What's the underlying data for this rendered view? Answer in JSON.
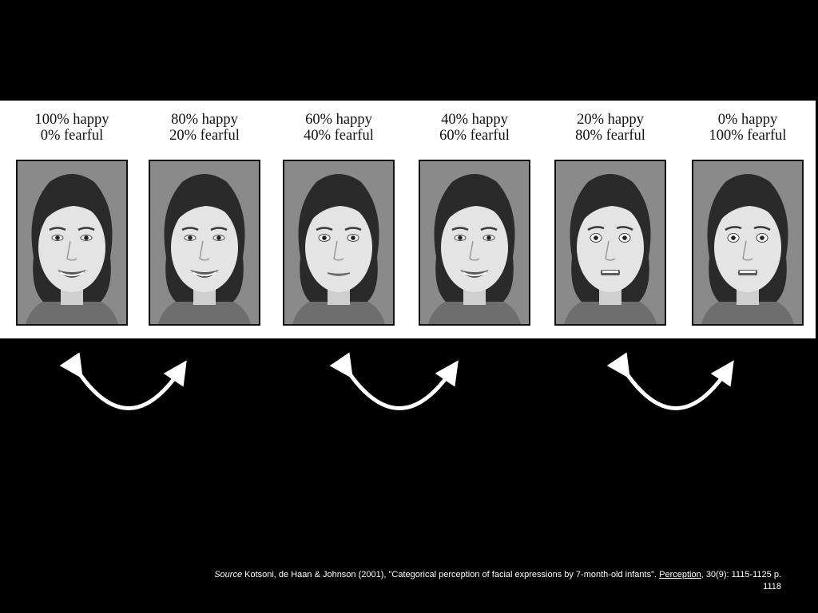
{
  "figure": {
    "panels": [
      {
        "happy": "100% happy",
        "fearful": "0% fearful",
        "expression": "smile"
      },
      {
        "happy": "80% happy",
        "fearful": "20% fearful",
        "expression": "smile"
      },
      {
        "happy": "60% happy",
        "fearful": "40% fearful",
        "expression": "neutral"
      },
      {
        "happy": "40% happy",
        "fearful": "60% fearful",
        "expression": "smile"
      },
      {
        "happy": "20% happy",
        "fearful": "80% fearful",
        "expression": "fear"
      },
      {
        "happy": "0% happy",
        "fearful": "100% fearful",
        "expression": "fear"
      }
    ]
  },
  "arrows": {
    "count": 3,
    "color": "#ffffff"
  },
  "source": {
    "label": "Source",
    "text_pre": " Kotsoni, de Haan & Johnson (2001), \"Categorical perception of facial expressions by 7-month-old infants\". ",
    "journal": "Perception",
    "text_post": ", 30(9): 1115-1125 p. 1118"
  }
}
